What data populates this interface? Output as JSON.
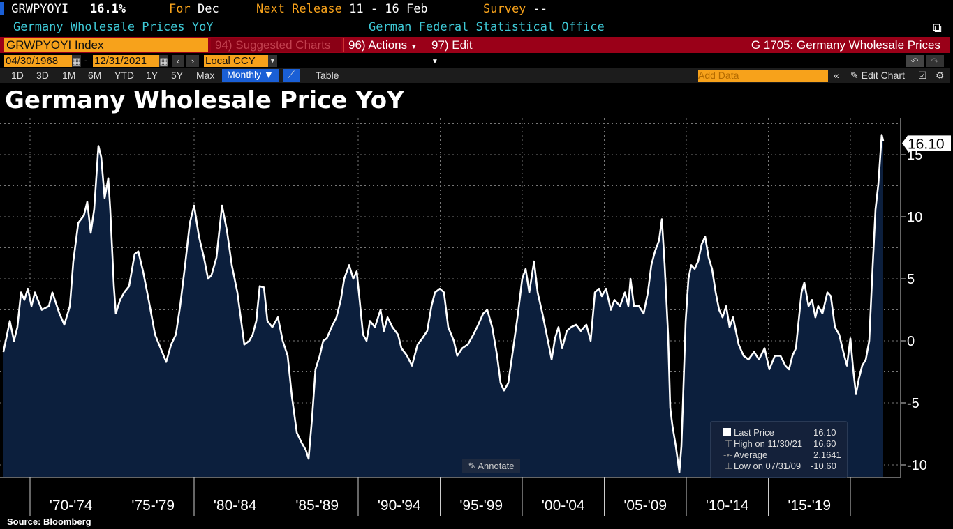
{
  "header": {
    "ticker": "GRWPYOYI",
    "value": "16.1%",
    "for_label": "For",
    "for_value": "Dec",
    "next_release_label": "Next Release",
    "next_release_value": "11 - 16 Feb",
    "survey_label": "Survey",
    "survey_value": "--",
    "description": "Germany Wholesale Prices YoY",
    "source_org": "German Federal Statistical Office"
  },
  "command_bar": {
    "security": "GRWPYOYI Index",
    "suggested": "94) Suggested Charts",
    "actions": "96) Actions",
    "edit": "97) Edit",
    "page_title": "G 1705: Germany Wholesale Prices"
  },
  "date_row": {
    "start": "04/30/1968",
    "sep": "-",
    "end": "12/31/2021",
    "currency": "Local CCY"
  },
  "toolbar": {
    "ranges": [
      "1D",
      "3D",
      "1M",
      "6M",
      "YTD",
      "1Y",
      "5Y",
      "Max"
    ],
    "frequency": "Monthly ▼",
    "table": "Table",
    "add_data_placeholder": "Add Data",
    "edit_chart": "Edit Chart"
  },
  "footer": {
    "source": "Source: Bloomberg"
  },
  "annotate": "Annotate",
  "legend": {
    "last_label": "Last Price",
    "last_value": "16.10",
    "high_label": "High on 11/30/21",
    "high_value": "16.60",
    "avg_label": "Average",
    "avg_value": "2.1641",
    "low_label": "Low on 07/31/09",
    "low_value": "-10.60"
  },
  "colors": {
    "line": "#ffffff",
    "area": "#0c1f3d",
    "accent": "#f7a21b",
    "red": "#9a0018"
  },
  "chart_data": {
    "type": "area",
    "title": "Germany Wholesale Price YoY",
    "xlabel": "",
    "ylabel": "",
    "ylim": [
      -10.5,
      18
    ],
    "xlim": [
      1968.33,
      2022.0
    ],
    "y_ticks": [
      15,
      10,
      5,
      0,
      -5,
      -10
    ],
    "x_tick_labels": [
      "'70-'74",
      "'75-'79",
      "'80-'84",
      "'85-'89",
      "'90-'94",
      "'95-'99",
      "'00-'04",
      "'05-'09",
      "'10-'14",
      "'15-'19"
    ],
    "last_value_label": "16.10",
    "grid": true,
    "legend_position": "bottom-right",
    "series": [
      {
        "name": "Last Price",
        "points": [
          [
            1968.38,
            -0.9
          ],
          [
            1968.6,
            0.5
          ],
          [
            1968.77,
            1.6
          ],
          [
            1969.02,
            0
          ],
          [
            1969.23,
            1.1
          ],
          [
            1969.45,
            3.9
          ],
          [
            1969.66,
            3.3
          ],
          [
            1969.87,
            4.2
          ],
          [
            1970.09,
            2.8
          ],
          [
            1970.3,
            3.9
          ],
          [
            1970.72,
            2.5
          ],
          [
            1971.15,
            2.8
          ],
          [
            1971.36,
            3.9
          ],
          [
            1971.79,
            2.2
          ],
          [
            1972.09,
            1.3
          ],
          [
            1972.43,
            2.8
          ],
          [
            1972.64,
            6.4
          ],
          [
            1972.94,
            9.5
          ],
          [
            1973.28,
            10.1
          ],
          [
            1973.49,
            11.2
          ],
          [
            1973.7,
            8.7
          ],
          [
            1973.91,
            10.6
          ],
          [
            1974.17,
            15.7
          ],
          [
            1974.34,
            14.8
          ],
          [
            1974.55,
            11.5
          ],
          [
            1974.77,
            13.1
          ],
          [
            1974.89,
            10.6
          ],
          [
            1975.11,
            4.4
          ],
          [
            1975.23,
            2.2
          ],
          [
            1975.49,
            3.3
          ],
          [
            1975.74,
            3.9
          ],
          [
            1976.04,
            4.4
          ],
          [
            1976.38,
            7.0
          ],
          [
            1976.6,
            7.2
          ],
          [
            1976.89,
            5.6
          ],
          [
            1977.23,
            3.3
          ],
          [
            1977.62,
            0.5
          ],
          [
            1977.96,
            -0.6
          ],
          [
            1978.3,
            -1.7
          ],
          [
            1978.6,
            -0.3
          ],
          [
            1978.89,
            0.5
          ],
          [
            1979.15,
            2.8
          ],
          [
            1979.45,
            6.1
          ],
          [
            1979.74,
            9.5
          ],
          [
            1980.0,
            10.9
          ],
          [
            1980.3,
            8.4
          ],
          [
            1980.6,
            6.7
          ],
          [
            1980.85,
            5.0
          ],
          [
            1981.06,
            5.3
          ],
          [
            1981.36,
            6.7
          ],
          [
            1981.7,
            10.9
          ],
          [
            1982.0,
            8.9
          ],
          [
            1982.3,
            6.1
          ],
          [
            1982.64,
            3.9
          ],
          [
            1983.06,
            -0.3
          ],
          [
            1983.36,
            0
          ],
          [
            1983.57,
            0.5
          ],
          [
            1983.79,
            1.6
          ],
          [
            1984.0,
            4.4
          ],
          [
            1984.26,
            4.3
          ],
          [
            1984.47,
            1.6
          ],
          [
            1984.77,
            1.1
          ],
          [
            1985.11,
            1.9
          ],
          [
            1985.4,
            0
          ],
          [
            1985.7,
            -1.2
          ],
          [
            1985.96,
            -4.5
          ],
          [
            1986.26,
            -7.4
          ],
          [
            1986.55,
            -8.2
          ],
          [
            1986.81,
            -8.8
          ],
          [
            1986.98,
            -9.5
          ],
          [
            1987.19,
            -6.2
          ],
          [
            1987.4,
            -2.3
          ],
          [
            1987.66,
            -1.2
          ],
          [
            1987.87,
            0
          ],
          [
            1988.09,
            0.2
          ],
          [
            1988.38,
            1.1
          ],
          [
            1988.68,
            1.9
          ],
          [
            1988.94,
            3.3
          ],
          [
            1989.15,
            5.0
          ],
          [
            1989.45,
            6.1
          ],
          [
            1989.7,
            5.0
          ],
          [
            1989.91,
            5.6
          ],
          [
            1990.09,
            3.3
          ],
          [
            1990.3,
            0.5
          ],
          [
            1990.51,
            0
          ],
          [
            1990.72,
            1.6
          ],
          [
            1991.02,
            1.1
          ],
          [
            1991.36,
            2.5
          ],
          [
            1991.57,
            0.8
          ],
          [
            1991.79,
            1.9
          ],
          [
            1992.09,
            1.1
          ],
          [
            1992.43,
            0.5
          ],
          [
            1992.64,
            -0.6
          ],
          [
            1992.98,
            -1.2
          ],
          [
            1993.28,
            -2.0
          ],
          [
            1993.62,
            -0.3
          ],
          [
            1993.91,
            0.2
          ],
          [
            1994.21,
            0.8
          ],
          [
            1994.47,
            2.8
          ],
          [
            1994.68,
            3.9
          ],
          [
            1994.98,
            4.2
          ],
          [
            1995.23,
            3.9
          ],
          [
            1995.49,
            1.1
          ],
          [
            1995.83,
            0
          ],
          [
            1996.04,
            -1.2
          ],
          [
            1996.34,
            -0.6
          ],
          [
            1996.68,
            -0.3
          ],
          [
            1997.02,
            0.5
          ],
          [
            1997.32,
            1.3
          ],
          [
            1997.62,
            2.2
          ],
          [
            1997.87,
            2.5
          ],
          [
            1998.17,
            1.1
          ],
          [
            1998.47,
            -1.2
          ],
          [
            1998.68,
            -3.4
          ],
          [
            1998.89,
            -4.0
          ],
          [
            1999.15,
            -3.4
          ],
          [
            1999.45,
            -0.6
          ],
          [
            1999.74,
            2.2
          ],
          [
            2000.0,
            5.0
          ],
          [
            2000.21,
            5.8
          ],
          [
            2000.43,
            3.9
          ],
          [
            2000.72,
            6.4
          ],
          [
            2000.94,
            3.9
          ],
          [
            2001.23,
            2.2
          ],
          [
            2001.49,
            0.5
          ],
          [
            2001.79,
            -1.5
          ],
          [
            2002.0,
            0.2
          ],
          [
            2002.21,
            1.1
          ],
          [
            2002.43,
            -0.6
          ],
          [
            2002.72,
            0.8
          ],
          [
            2002.98,
            1.1
          ],
          [
            2003.28,
            1.3
          ],
          [
            2003.57,
            0.8
          ],
          [
            2003.91,
            1.3
          ],
          [
            2004.17,
            0
          ],
          [
            2004.43,
            3.9
          ],
          [
            2004.68,
            4.2
          ],
          [
            2004.85,
            3.6
          ],
          [
            2005.11,
            4.2
          ],
          [
            2005.4,
            2.5
          ],
          [
            2005.62,
            3.3
          ],
          [
            2005.96,
            2.8
          ],
          [
            2006.26,
            3.9
          ],
          [
            2006.47,
            2.8
          ],
          [
            2006.6,
            5.0
          ],
          [
            2006.81,
            2.8
          ],
          [
            2007.11,
            2.8
          ],
          [
            2007.4,
            2.2
          ],
          [
            2007.66,
            3.9
          ],
          [
            2007.87,
            6.1
          ],
          [
            2008.09,
            7.2
          ],
          [
            2008.34,
            8.1
          ],
          [
            2008.51,
            9.8
          ],
          [
            2008.68,
            6.1
          ],
          [
            2008.89,
            0.5
          ],
          [
            2009.02,
            -5.4
          ],
          [
            2009.15,
            -6.8
          ],
          [
            2009.36,
            -8.5
          ],
          [
            2009.58,
            -10.6
          ],
          [
            2009.7,
            -8.5
          ],
          [
            2009.79,
            -5.1
          ],
          [
            2009.96,
            1.6
          ],
          [
            2010.13,
            5.0
          ],
          [
            2010.3,
            6.1
          ],
          [
            2010.51,
            5.8
          ],
          [
            2010.72,
            6.4
          ],
          [
            2010.94,
            7.8
          ],
          [
            2011.15,
            8.4
          ],
          [
            2011.36,
            6.7
          ],
          [
            2011.57,
            5.8
          ],
          [
            2011.79,
            3.9
          ],
          [
            2012.0,
            2.5
          ],
          [
            2012.21,
            1.9
          ],
          [
            2012.43,
            2.8
          ],
          [
            2012.64,
            1.1
          ],
          [
            2012.85,
            1.9
          ],
          [
            2013.19,
            -0.3
          ],
          [
            2013.49,
            -1.2
          ],
          [
            2013.79,
            -1.5
          ],
          [
            2014.13,
            -0.9
          ],
          [
            2014.43,
            -1.5
          ],
          [
            2014.77,
            -0.6
          ],
          [
            2015.06,
            -2.3
          ],
          [
            2015.4,
            -1.2
          ],
          [
            2015.74,
            -1.2
          ],
          [
            2016.04,
            -2.0
          ],
          [
            2016.26,
            -2.3
          ],
          [
            2016.47,
            -1.2
          ],
          [
            2016.68,
            -0.6
          ],
          [
            2017.02,
            3.9
          ],
          [
            2017.19,
            4.7
          ],
          [
            2017.45,
            2.8
          ],
          [
            2017.66,
            3.3
          ],
          [
            2017.87,
            1.9
          ],
          [
            2018.04,
            2.8
          ],
          [
            2018.3,
            2.2
          ],
          [
            2018.6,
            3.9
          ],
          [
            2018.81,
            3.6
          ],
          [
            2019.06,
            1.1
          ],
          [
            2019.32,
            0.5
          ],
          [
            2019.57,
            -0.9
          ],
          [
            2019.79,
            -2.0
          ],
          [
            2020.0,
            0.2
          ],
          [
            2020.17,
            -2.3
          ],
          [
            2020.34,
            -4.3
          ],
          [
            2020.51,
            -3.1
          ],
          [
            2020.72,
            -2.0
          ],
          [
            2020.94,
            -1.5
          ],
          [
            2021.15,
            0
          ],
          [
            2021.36,
            6.1
          ],
          [
            2021.53,
            10.6
          ],
          [
            2021.7,
            12.6
          ],
          [
            2021.91,
            16.6
          ],
          [
            2022.0,
            16.1
          ]
        ]
      }
    ]
  }
}
